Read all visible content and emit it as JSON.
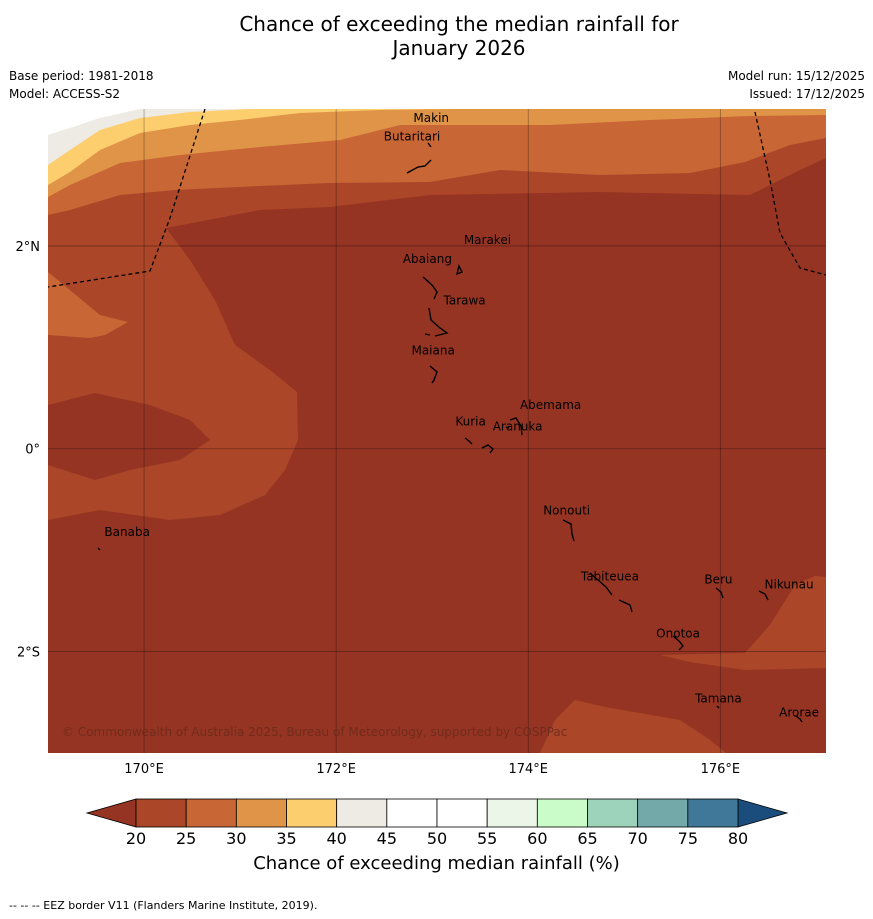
{
  "title_line1": "Chance of exceeding the median rainfall for",
  "title_line2": "January 2026",
  "meta": {
    "base_period": "Base period: 1981-2018",
    "model": "Model: ACCESS-S2",
    "model_run": "Model run: 15/12/2025",
    "issued": "Issued: 17/12/2025"
  },
  "copyright": "© Commonwealth of Australia 2025, Bureau of Meteorology, supported by COSPPac",
  "footer": "-- -- -- EEZ border V11 (Flanders Marine Institute, 2019).",
  "map": {
    "lon_range": [
      169,
      177.1
    ],
    "lat_range": [
      -3.0,
      3.35
    ],
    "lon_ticks": [
      {
        "v": 170,
        "label": "170°E"
      },
      {
        "v": 172,
        "label": "172°E"
      },
      {
        "v": 174,
        "label": "174°E"
      },
      {
        "v": 176,
        "label": "176°E"
      }
    ],
    "lat_ticks": [
      {
        "v": 2,
        "label": "2°N"
      },
      {
        "v": 0,
        "label": "0°"
      },
      {
        "v": -2,
        "label": "2°S"
      }
    ],
    "places": [
      {
        "name": "Makin",
        "lon": 172.99,
        "lat": 3.22
      },
      {
        "name": "Butaritari",
        "lon": 172.79,
        "lat": 3.04
      },
      {
        "name": "Marakei",
        "lon": 173.28,
        "lat": 2.02
      },
      {
        "name": "Abaiang",
        "lon": 172.95,
        "lat": 1.83
      },
      {
        "name": "Tarawa",
        "lon": 173.03,
        "lat": 1.42
      },
      {
        "name": "Maiana",
        "lon": 173.01,
        "lat": 0.93
      },
      {
        "name": "Abemama",
        "lon": 173.85,
        "lat": 0.39
      },
      {
        "name": "Kuria",
        "lon": 173.4,
        "lat": 0.23
      },
      {
        "name": "Aranuka",
        "lon": 173.63,
        "lat": 0.18
      },
      {
        "name": "Banaba",
        "lon": 169.54,
        "lat": -0.86
      },
      {
        "name": "Nonouti",
        "lon": 174.4,
        "lat": -0.65
      },
      {
        "name": "Tabiteuea",
        "lon": 174.85,
        "lat": -1.3
      },
      {
        "name": "Beru",
        "lon": 175.98,
        "lat": -1.33
      },
      {
        "name": "Nikunau",
        "lon": 176.46,
        "lat": -1.38
      },
      {
        "name": "Onotoa",
        "lon": 175.56,
        "lat": -1.86
      },
      {
        "name": "Tamana",
        "lon": 175.98,
        "lat": -2.5
      },
      {
        "name": "Arorae",
        "lon": 176.82,
        "lat": -2.64
      }
    ]
  },
  "legend": {
    "title": "Chance of exceeding median rainfall (%)",
    "ticks": [
      "20",
      "25",
      "30",
      "35",
      "40",
      "45",
      "50",
      "55",
      "60",
      "65",
      "70",
      "75",
      "80"
    ],
    "under_color": "#963424",
    "over_color": "#1a4d7c",
    "colors": [
      "#ab4628",
      "#c86635",
      "#e09448",
      "#fcce6e",
      "#eeeae4",
      "#ffffff",
      "#ffffff",
      "#ebf5e8",
      "#c9fcc9",
      "#9dd2bb",
      "#73a9a9",
      "#3f7898"
    ]
  },
  "colors": {
    "lt20": "#963424",
    "r20_25": "#ab4628",
    "r25_30": "#c86635",
    "r30_35": "#e09448",
    "r35_40": "#fcce6e",
    "r40_45": "#eeeae4"
  }
}
